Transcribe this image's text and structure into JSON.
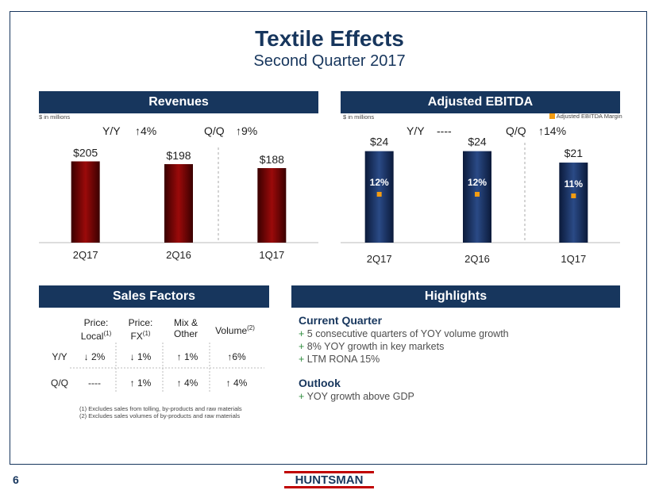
{
  "page": {
    "title": "Textile Effects",
    "subtitle": "Second Quarter 2017",
    "page_number": "6",
    "logo_text": "HUNTSMAN"
  },
  "revenues": {
    "header": "Revenues",
    "units": "$ in millions",
    "yy_label": "Y/Y",
    "yy_value": "4%",
    "qq_label": "Q/Q",
    "qq_value": "9%"
  },
  "ebitda": {
    "header": "Adjusted EBITDA",
    "units": "$ in millions",
    "legend": "Adjusted EBITDA Margin",
    "yy_label": "Y/Y",
    "yy_value": "----",
    "qq_label": "Q/Q",
    "qq_value": "14%"
  },
  "sales_factors": {
    "header": "Sales Factors",
    "columns": [
      {
        "line1": "Price:",
        "line2": "Local",
        "sup": "(1)"
      },
      {
        "line1": "Price:",
        "line2": "FX",
        "sup": "(1)"
      },
      {
        "line1": "Mix &",
        "line2": "Other",
        "sup": ""
      },
      {
        "line1": "Volume",
        "line2": "",
        "sup": "(2)"
      }
    ],
    "rows": [
      {
        "label": "Y/Y",
        "cells": [
          "↓ 2%",
          "↓ 1%",
          "↑ 1%",
          "↑6%"
        ]
      },
      {
        "label": "Q/Q",
        "cells": [
          "----",
          "↑ 1%",
          "↑ 4%",
          "↑ 4%"
        ]
      }
    ],
    "footnotes": [
      "(1) Excludes sales from tolling, by-products and raw materials",
      "(2) Excludes sales volumes of by-products and raw materials"
    ]
  },
  "highlights": {
    "header": "Highlights",
    "current_title": "Current Quarter",
    "current_items": [
      "5 consecutive quarters of YOY volume growth",
      "8% YOY growth in key markets",
      "LTM RONA 15%"
    ],
    "outlook_title": "Outlook",
    "outlook_items": [
      "YOY growth above GDP"
    ],
    "bullet": "+"
  },
  "colors": {
    "navy": "#17365d",
    "bar_red": "#8b0000",
    "bar_blue": "#1a2f5a",
    "marker": "#f39c12",
    "green": "#2e8b3d"
  },
  "chart_data": [
    {
      "type": "bar",
      "title": "Revenues",
      "categories": [
        "2Q17",
        "2Q16",
        "1Q17"
      ],
      "values": [
        205,
        198,
        188
      ],
      "data_labels": [
        "$205",
        "$198",
        "$188"
      ],
      "ylim": [
        0,
        260
      ]
    },
    {
      "type": "bar",
      "title": "Adjusted EBITDA",
      "categories": [
        "2Q17",
        "2Q16",
        "1Q17"
      ],
      "values": [
        24,
        24,
        21
      ],
      "data_labels": [
        "$24",
        "$24",
        "$21"
      ],
      "ylim": [
        0,
        26
      ],
      "series": [
        {
          "values": [
            24,
            24,
            21
          ]
        },
        {
          "name": "Adjusted EBITDA Margin",
          "values": [
            12,
            12,
            11
          ],
          "labels": [
            "12%",
            "12%",
            "11%"
          ]
        }
      ]
    }
  ]
}
